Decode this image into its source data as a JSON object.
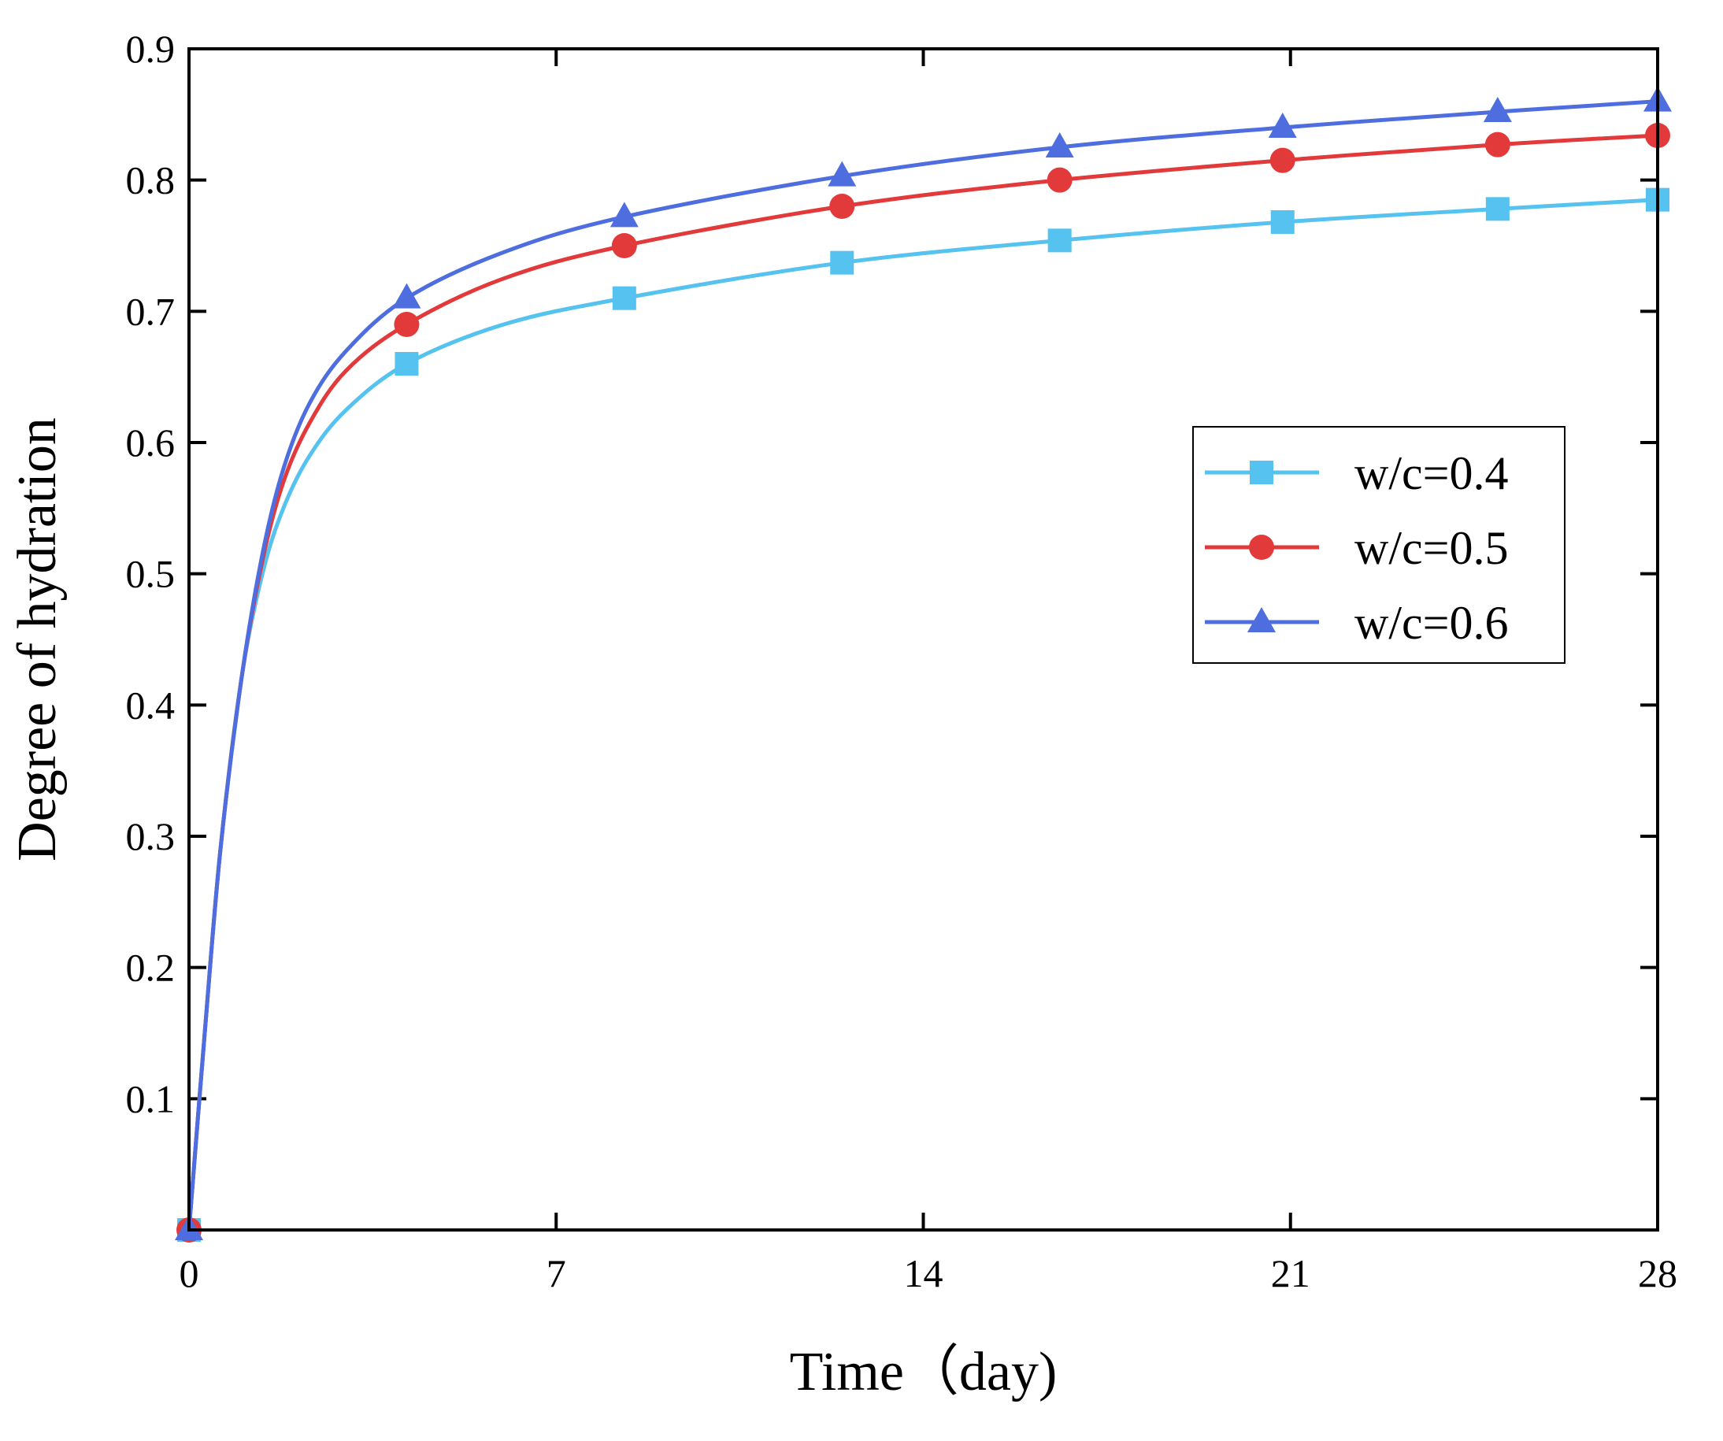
{
  "chart_data": {
    "type": "line",
    "xlabel": "Time（day)",
    "ylabel": "Degree of hydration",
    "xlim": [
      0,
      28
    ],
    "ylim": [
      0,
      0.9
    ],
    "xticks": [
      0,
      7,
      14,
      21,
      28
    ],
    "yticks": [
      0.1,
      0.2,
      0.3,
      0.4,
      0.5,
      0.6,
      0.7,
      0.8,
      0.9
    ],
    "x_tick_labels": [
      "0",
      "7",
      "14",
      "21",
      "28"
    ],
    "y_tick_labels": [
      "0.1",
      "0.2",
      "0.3",
      "0.4",
      "0.5",
      "0.6",
      "0.7",
      "0.8",
      "0.9"
    ],
    "grid": false,
    "legend_position": "right-middle",
    "series": [
      {
        "name": "w/c=0.4",
        "color": "#55c2ef",
        "marker": "square",
        "markers": [
          [
            0,
            0
          ],
          [
            4.15,
            0.66
          ],
          [
            8.3,
            0.71
          ],
          [
            12.45,
            0.737
          ],
          [
            16.6,
            0.754
          ],
          [
            20.85,
            0.768
          ],
          [
            24.95,
            0.778
          ],
          [
            28,
            0.785
          ]
        ],
        "curve": [
          [
            0,
            0
          ],
          [
            0.3,
            0.15
          ],
          [
            0.6,
            0.29
          ],
          [
            1.0,
            0.42
          ],
          [
            1.4,
            0.5
          ],
          [
            1.8,
            0.55
          ],
          [
            2.3,
            0.59
          ],
          [
            3.0,
            0.625
          ],
          [
            4.15,
            0.66
          ],
          [
            6.0,
            0.69
          ],
          [
            8.3,
            0.71
          ],
          [
            12.45,
            0.737
          ],
          [
            16.6,
            0.754
          ],
          [
            20.85,
            0.768
          ],
          [
            24.95,
            0.778
          ],
          [
            28,
            0.785
          ]
        ]
      },
      {
        "name": "w/c=0.5",
        "color": "#e23a3a",
        "marker": "circle",
        "markers": [
          [
            0,
            0
          ],
          [
            4.15,
            0.69
          ],
          [
            8.3,
            0.75
          ],
          [
            12.45,
            0.78
          ],
          [
            16.6,
            0.8
          ],
          [
            20.85,
            0.815
          ],
          [
            24.95,
            0.827
          ],
          [
            28,
            0.834
          ]
        ],
        "curve": [
          [
            0,
            0
          ],
          [
            0.3,
            0.15
          ],
          [
            0.6,
            0.29
          ],
          [
            1.0,
            0.42
          ],
          [
            1.4,
            0.51
          ],
          [
            1.8,
            0.57
          ],
          [
            2.3,
            0.615
          ],
          [
            3.0,
            0.655
          ],
          [
            4.15,
            0.69
          ],
          [
            6.0,
            0.725
          ],
          [
            8.3,
            0.75
          ],
          [
            12.45,
            0.78
          ],
          [
            16.6,
            0.8
          ],
          [
            20.85,
            0.815
          ],
          [
            24.95,
            0.827
          ],
          [
            28,
            0.834
          ]
        ]
      },
      {
        "name": "w/c=0.6",
        "color": "#4e6ee0",
        "marker": "triangle",
        "markers": [
          [
            0,
            0
          ],
          [
            4.15,
            0.71
          ],
          [
            8.3,
            0.772
          ],
          [
            12.45,
            0.803
          ],
          [
            16.6,
            0.825
          ],
          [
            20.85,
            0.84
          ],
          [
            24.95,
            0.852
          ],
          [
            28,
            0.86
          ]
        ],
        "curve": [
          [
            0,
            0
          ],
          [
            0.3,
            0.15
          ],
          [
            0.6,
            0.29
          ],
          [
            1.0,
            0.42
          ],
          [
            1.4,
            0.515
          ],
          [
            1.8,
            0.58
          ],
          [
            2.3,
            0.63
          ],
          [
            3.0,
            0.67
          ],
          [
            4.15,
            0.71
          ],
          [
            6.0,
            0.745
          ],
          [
            8.3,
            0.772
          ],
          [
            12.45,
            0.803
          ],
          [
            16.6,
            0.825
          ],
          [
            20.85,
            0.84
          ],
          [
            24.95,
            0.852
          ],
          [
            28,
            0.86
          ]
        ]
      }
    ]
  }
}
